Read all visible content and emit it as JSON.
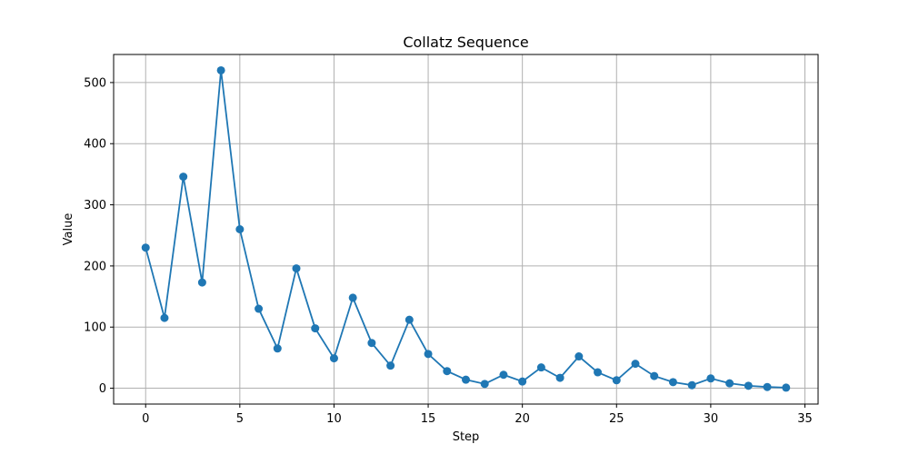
{
  "chart_data": {
    "type": "line",
    "title": "Collatz Sequence",
    "xlabel": "Step",
    "ylabel": "Value",
    "xlim": [
      -1.7,
      35.7
    ],
    "ylim": [
      -25.9,
      545.9
    ],
    "xticks": [
      0,
      5,
      10,
      15,
      20,
      25,
      30,
      35
    ],
    "yticks": [
      0,
      100,
      200,
      300,
      400,
      500
    ],
    "grid": true,
    "series": [
      {
        "color": "#1f77b4",
        "marker": "circle",
        "x": [
          0,
          1,
          2,
          3,
          4,
          5,
          6,
          7,
          8,
          9,
          10,
          11,
          12,
          13,
          14,
          15,
          16,
          17,
          18,
          19,
          20,
          21,
          22,
          23,
          24,
          25,
          26,
          27,
          28,
          29,
          30,
          31,
          32,
          33,
          34
        ],
        "values": [
          230,
          115,
          346,
          173,
          520,
          260,
          130,
          65,
          196,
          98,
          49,
          148,
          74,
          37,
          112,
          56,
          28,
          14,
          7,
          22,
          11,
          34,
          17,
          52,
          26,
          13,
          40,
          20,
          10,
          5,
          16,
          8,
          4,
          2,
          1
        ]
      }
    ]
  }
}
